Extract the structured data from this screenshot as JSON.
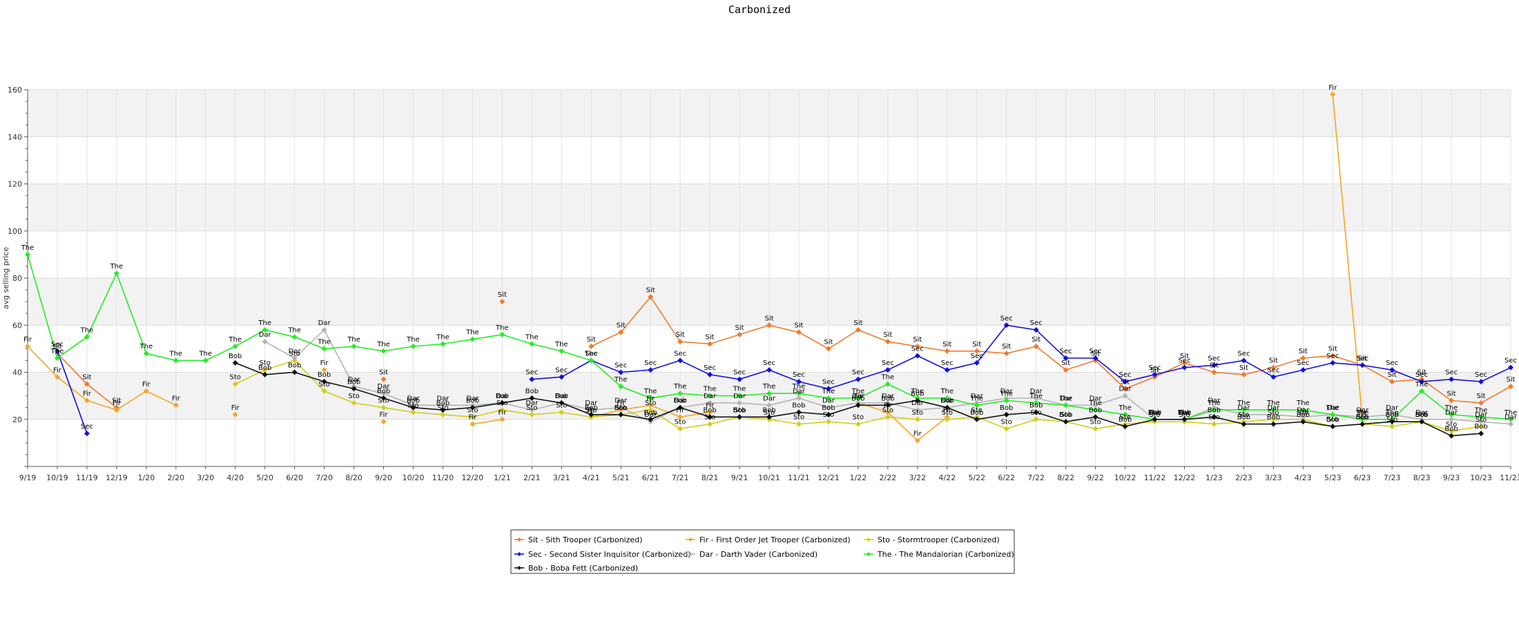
{
  "chart_data": {
    "type": "line",
    "title": "Carbonized",
    "ylabel": "avg selling price",
    "xlabel": "",
    "ylim": [
      0,
      160
    ],
    "yticks": [
      20,
      40,
      60,
      80,
      100,
      120,
      140,
      160
    ],
    "grid": true,
    "legend_position": "bottom-center",
    "x": [
      "9/19",
      "10/19",
      "11/19",
      "12/19",
      "1/20",
      "2/20",
      "3/20",
      "4/20",
      "5/20",
      "6/20",
      "7/20",
      "8/20",
      "9/20",
      "10/20",
      "11/20",
      "12/20",
      "1/21",
      "2/21",
      "3/21",
      "4/21",
      "5/21",
      "6/21",
      "7/21",
      "8/21",
      "9/21",
      "10/21",
      "11/21",
      "12/21",
      "1/22",
      "2/22",
      "3/22",
      "4/22",
      "5/22",
      "6/22",
      "7/22",
      "8/22",
      "9/22",
      "10/22",
      "11/22",
      "12/22",
      "1/23",
      "2/23",
      "3/23",
      "4/23",
      "5/23",
      "6/23",
      "7/23",
      "8/23",
      "9/23",
      "10/23",
      "11/23"
    ],
    "series": [
      {
        "name": "Sit - Sith Trooper (Carbonized)",
        "abbr": "Sit",
        "color": "#f07a2a",
        "values": [
          null,
          48,
          35,
          25,
          null,
          null,
          null,
          null,
          null,
          null,
          null,
          null,
          37,
          null,
          null,
          null,
          70,
          null,
          null,
          51,
          57,
          72,
          53,
          52,
          56,
          60,
          57,
          50,
          58,
          53,
          51,
          49,
          49,
          48,
          51,
          41,
          45,
          33,
          38,
          44,
          40,
          39,
          42,
          46,
          47,
          43,
          36,
          37,
          28,
          27,
          34
        ]
      },
      {
        "name": "Fir - First Order Jet Trooper (Carbonized)",
        "abbr": "Fir",
        "color": "#f5a623",
        "values": [
          51,
          38,
          28,
          24,
          32,
          26,
          null,
          22,
          null,
          null,
          41,
          null,
          19,
          null,
          null,
          18,
          20,
          null,
          null,
          21,
          24,
          26,
          21,
          23,
          null,
          null,
          null,
          null,
          27,
          23,
          11,
          21,
          null,
          null,
          null,
          null,
          null,
          null,
          null,
          null,
          null,
          null,
          null,
          null,
          158,
          20,
          null,
          null,
          null,
          null,
          null
        ]
      },
      {
        "name": "Sto - Stormtrooper (Carbonized)",
        "abbr": "Sto",
        "color": "#d4cc1a",
        "values": [
          null,
          null,
          null,
          null,
          null,
          null,
          null,
          35,
          41,
          45,
          32,
          27,
          25,
          23,
          22,
          21,
          24,
          22,
          23,
          21,
          22,
          24,
          16,
          18,
          21,
          20,
          18,
          19,
          18,
          21,
          20,
          20,
          21,
          16,
          20,
          19,
          16,
          18,
          19,
          19,
          18,
          19,
          20,
          20,
          17,
          18,
          17,
          19,
          15,
          17,
          null
        ]
      },
      {
        "name": "Sec - Second Sister Inquisitor (Carbonized)",
        "abbr": "Sec",
        "color": "#1010e0",
        "values": [
          null,
          49,
          14,
          null,
          null,
          null,
          null,
          null,
          null,
          null,
          null,
          null,
          null,
          null,
          null,
          null,
          null,
          37,
          38,
          45,
          40,
          41,
          45,
          39,
          37,
          41,
          36,
          33,
          37,
          41,
          47,
          41,
          44,
          60,
          58,
          46,
          46,
          36,
          39,
          42,
          43,
          45,
          38,
          41,
          44,
          43,
          41,
          36,
          37,
          36,
          42
        ]
      },
      {
        "name": "Dar - Darth Vader (Carbonized)",
        "abbr": "Dar",
        "color": "#b4b4b4",
        "values": [
          null,
          null,
          null,
          null,
          null,
          null,
          null,
          null,
          53,
          46,
          58,
          34,
          31,
          26,
          26,
          26,
          27,
          24,
          27,
          24,
          25,
          19,
          25,
          27,
          27,
          26,
          29,
          25,
          27,
          27,
          24,
          25,
          27,
          29,
          29,
          26,
          26,
          30,
          20,
          20,
          25,
          22,
          22,
          21,
          22,
          21,
          22,
          20,
          20,
          19,
          18
        ]
      },
      {
        "name": "The - The Mandalorian (Carbonized)",
        "abbr": "The",
        "color": "#22ee22",
        "values": [
          90,
          46,
          55,
          82,
          48,
          45,
          45,
          51,
          58,
          55,
          50,
          51,
          49,
          51,
          52,
          54,
          56,
          52,
          49,
          45,
          34,
          29,
          31,
          30,
          30,
          31,
          31,
          29,
          29,
          35,
          29,
          29,
          26,
          28,
          27,
          26,
          24,
          22,
          20,
          20,
          24,
          24,
          24,
          24,
          22,
          20,
          20,
          32,
          22,
          21,
          20
        ]
      },
      {
        "name": "Bob - Boba Fett (Carbonized)",
        "abbr": "Bob",
        "color": "#111111",
        "values": [
          null,
          null,
          null,
          null,
          null,
          null,
          null,
          44,
          39,
          40,
          36,
          33,
          29,
          25,
          24,
          25,
          27,
          29,
          27,
          22,
          22,
          20,
          25,
          21,
          21,
          21,
          23,
          22,
          26,
          26,
          28,
          25,
          20,
          22,
          23,
          19,
          21,
          17,
          20,
          20,
          21,
          18,
          18,
          19,
          17,
          18,
          19,
          19,
          13,
          14,
          null
        ]
      }
    ]
  }
}
